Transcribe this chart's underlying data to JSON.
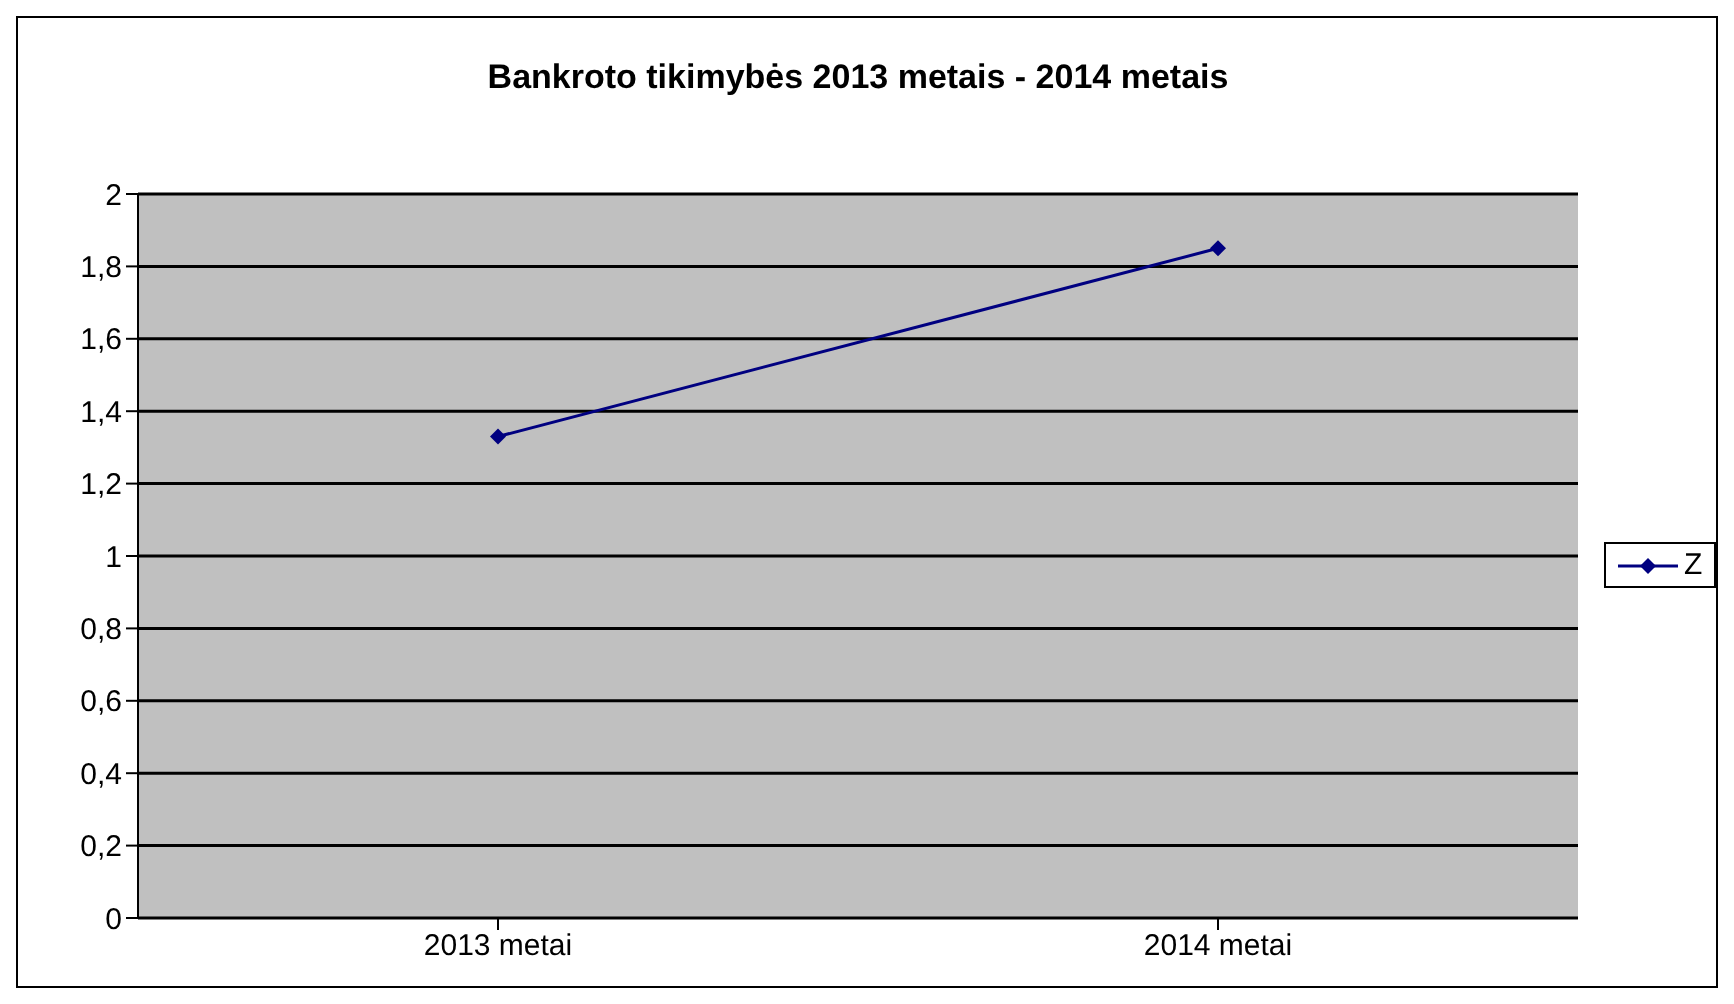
{
  "chart_data": {
    "type": "line",
    "title": "Bankroto tikimybės 2013 metais - 2014 metais",
    "categories": [
      "2013 metai",
      "2014 metai"
    ],
    "series": [
      {
        "name": "Z",
        "color": "#000080",
        "values": [
          1.33,
          1.85
        ]
      }
    ],
    "ylim": [
      0,
      2
    ],
    "yticks": [
      0,
      {
        "value": 0.2,
        "label": "0,2"
      },
      {
        "value": 0.4,
        "label": "0,4"
      },
      {
        "value": 0.6,
        "label": "0,6"
      },
      {
        "value": 0.8,
        "label": "0,8"
      },
      1,
      {
        "value": 1.2,
        "label": "1,2"
      },
      {
        "value": 1.4,
        "label": "1,4"
      },
      {
        "value": 1.6,
        "label": "1,6"
      },
      {
        "value": 1.8,
        "label": "1,8"
      },
      2
    ],
    "grid": "y",
    "legend": "right",
    "marker": "diamond",
    "line_style": "solid"
  }
}
